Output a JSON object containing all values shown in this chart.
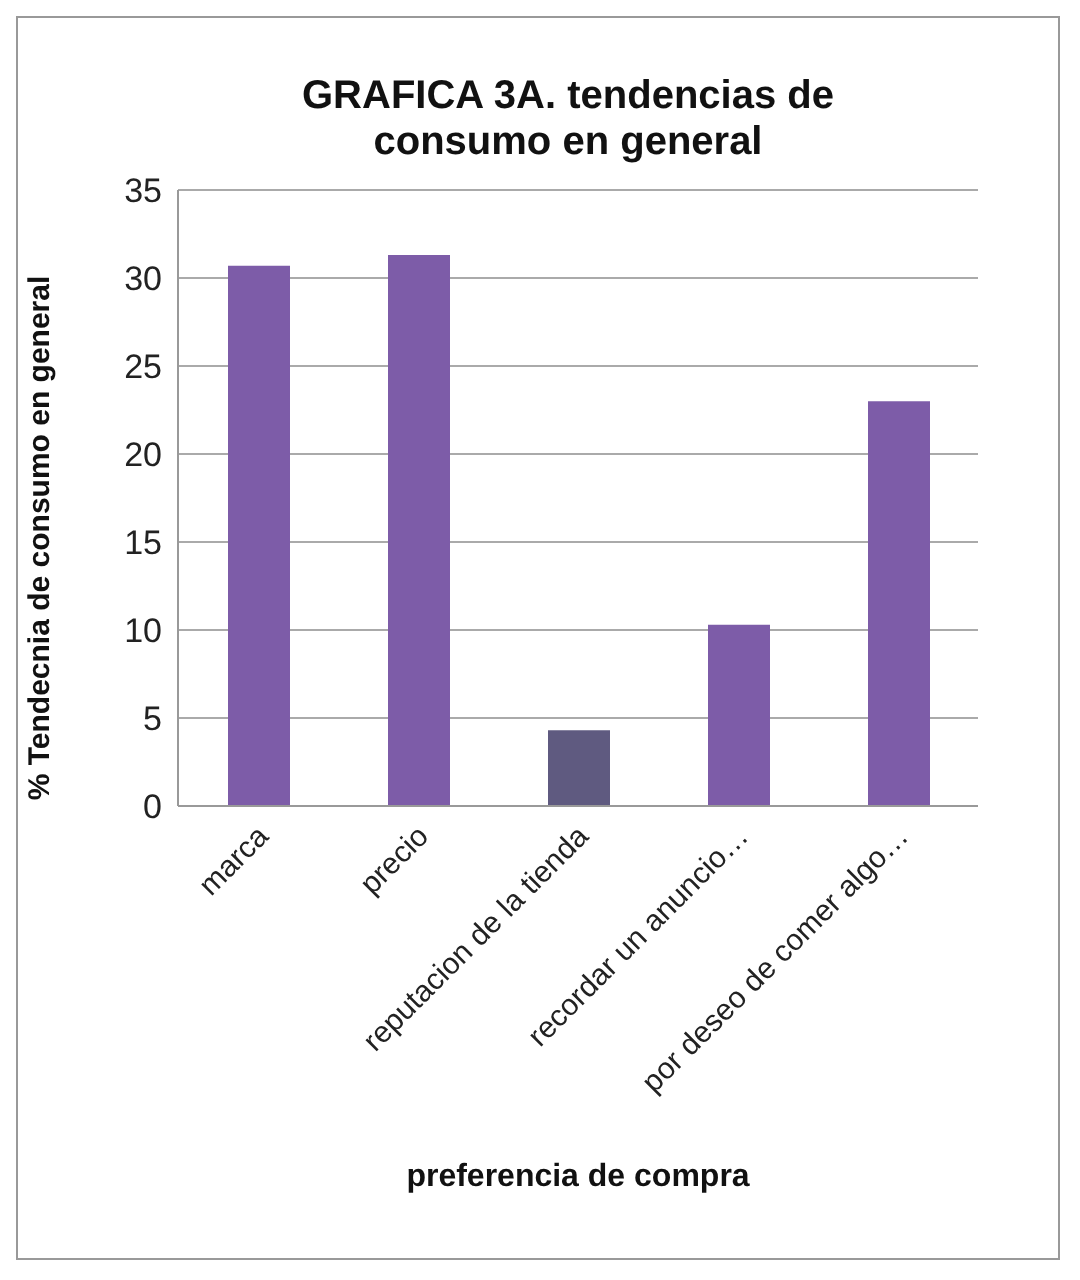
{
  "chart_data": {
    "type": "bar",
    "title": "GRAFICA 3A. tendencias de consumo en general",
    "xlabel": "preferencia de compra",
    "ylabel": "% Tendecnia de consumo en general",
    "categories": [
      "marca",
      "precio",
      "reputacion de la tienda",
      "recordar un anuncio…",
      "por deseo de comer algo…"
    ],
    "values": [
      30.7,
      31.3,
      4.3,
      10.3,
      23
    ],
    "colors": [
      "#7d5ca8",
      "#7d5ca8",
      "#5f5a80",
      "#7d5ca8",
      "#7d5ca8"
    ],
    "ylim": [
      0,
      35
    ],
    "yticks": [
      0,
      5,
      10,
      15,
      20,
      25,
      30,
      35
    ],
    "grid": "y",
    "legend": false
  }
}
